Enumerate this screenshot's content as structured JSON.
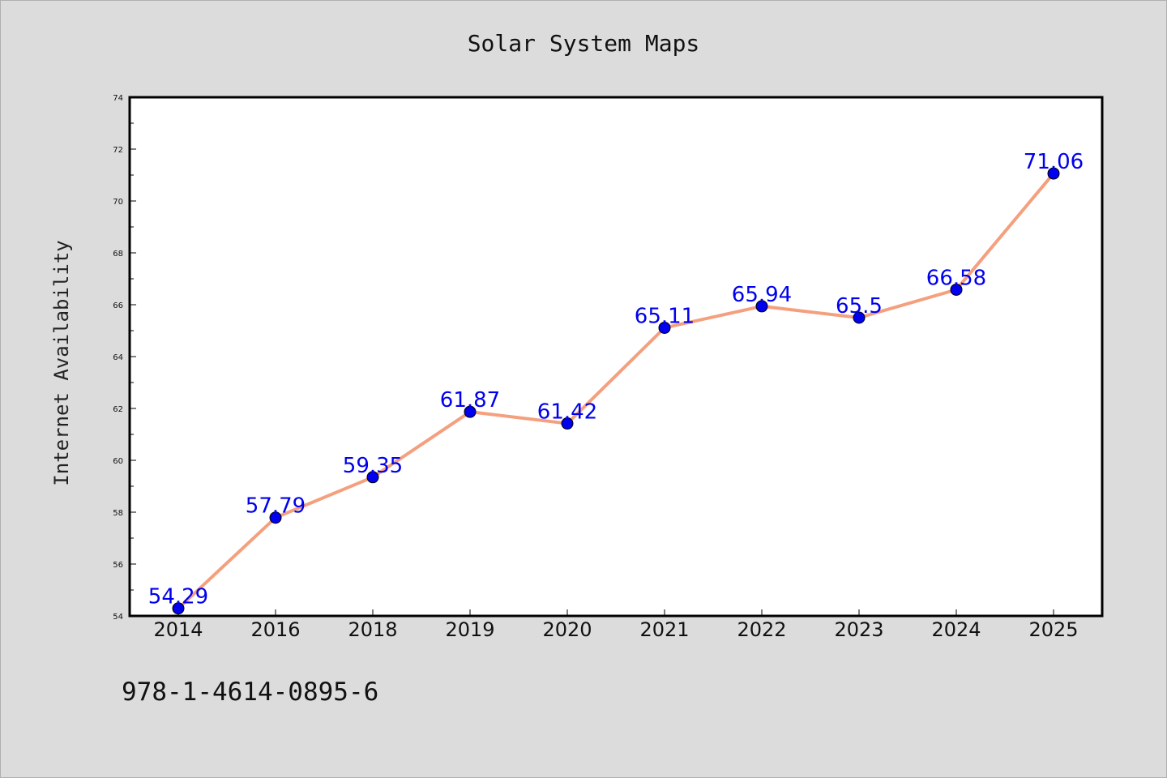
{
  "chart_data": {
    "type": "line",
    "title": "Solar System Maps",
    "xlabel": "",
    "ylabel": "Internet Availability",
    "categories": [
      "2014",
      "2016",
      "2018",
      "2019",
      "2020",
      "2021",
      "2022",
      "2023",
      "2024",
      "2025"
    ],
    "values": [
      54.29,
      57.79,
      59.35,
      61.87,
      61.42,
      65.11,
      65.94,
      65.5,
      66.58,
      71.06
    ],
    "data_labels": [
      "54.29",
      "57.79",
      "59.35",
      "61.87",
      "61.42",
      "65.11",
      "65.94",
      "65.5",
      "66.58",
      "71.06"
    ],
    "ylim": [
      54,
      74
    ],
    "yticks": [
      "54",
      "56",
      "58",
      "60",
      "62",
      "64",
      "66",
      "68",
      "70",
      "72",
      "74"
    ],
    "grid": false,
    "legend": "none",
    "line_color": "#f4a07e",
    "marker_color": "#0000ee",
    "label_color": "#0000ee"
  },
  "footer_text": "978-1-4614-0895-6"
}
